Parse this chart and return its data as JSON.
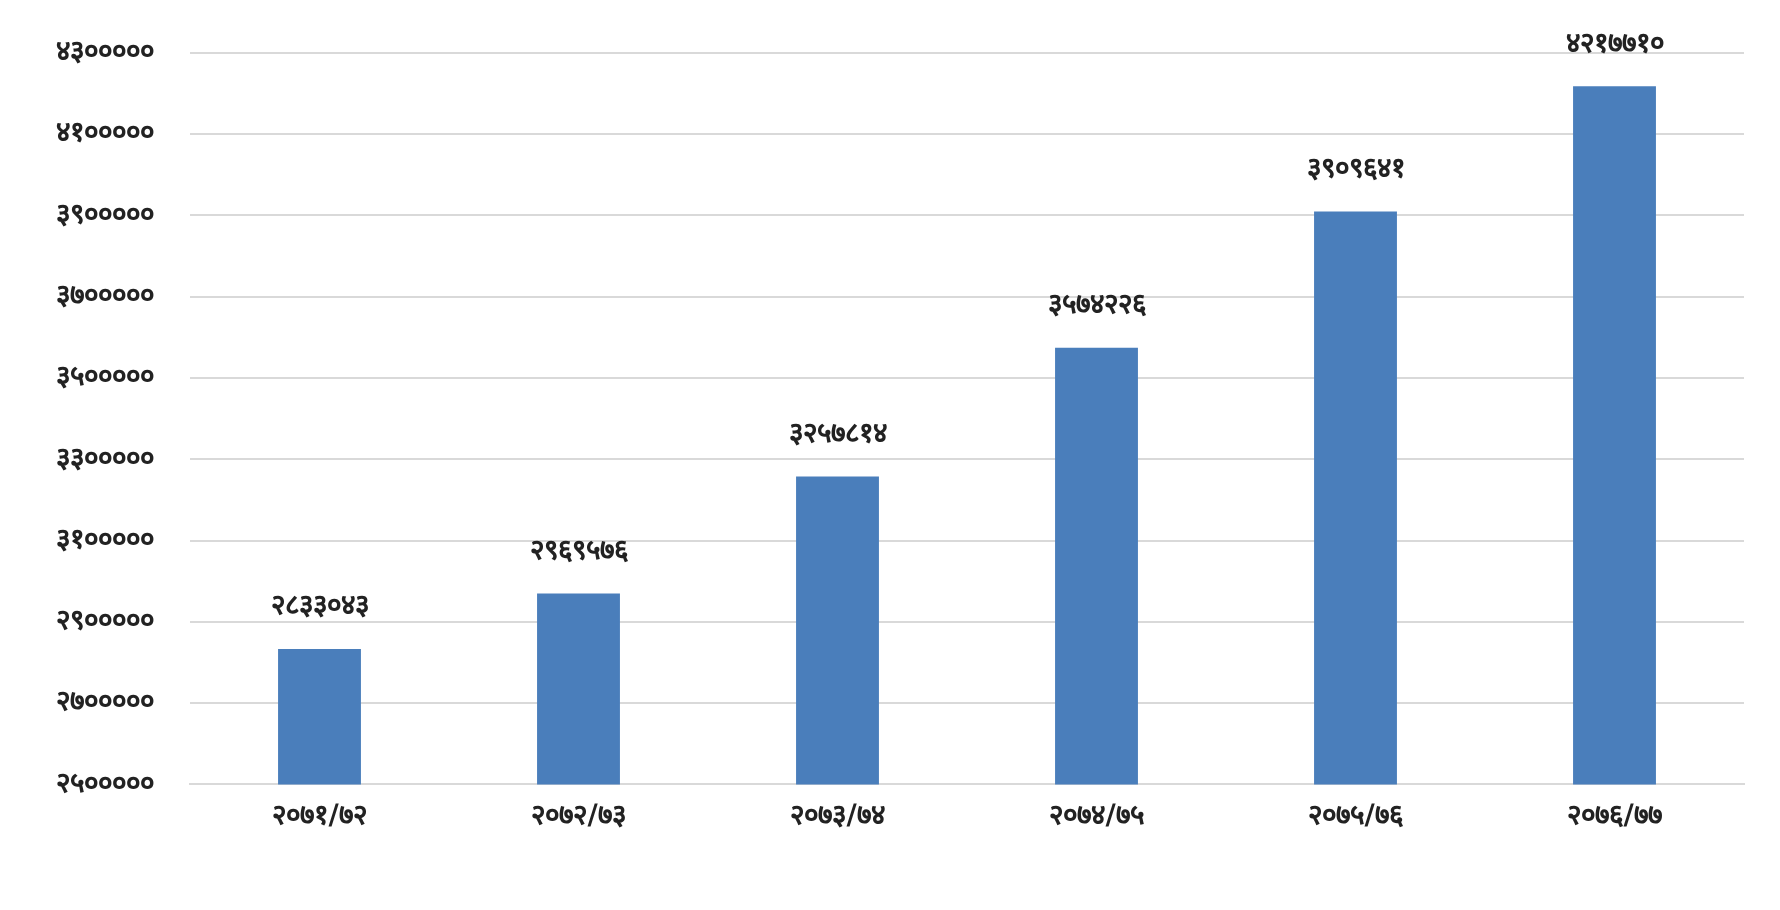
{
  "chart_data": {
    "type": "bar",
    "categories": [
      "२०७१/७२",
      "२०७२/७३",
      "२०७३/७४",
      "२०७४/७५",
      "२०७५/७६",
      "२०७६/७७"
    ],
    "values": [
      2833043,
      2969576,
      3257814,
      3574226,
      3909641,
      4217710
    ],
    "value_labels": [
      "२८३३०४३",
      "२९६९५७६",
      "३२५७८१४",
      "३५७४२२६",
      "३९०९६४१",
      "४२१७७१०"
    ],
    "color": "#4a7ebb",
    "ylim": [
      2500000,
      4300000
    ],
    "yticks": [
      {
        "value": 2500000,
        "label": "२५०००००"
      },
      {
        "value": 2700000,
        "label": "२७०००००"
      },
      {
        "value": 2900000,
        "label": "२९०००००"
      },
      {
        "value": 3100000,
        "label": "३१०००००"
      },
      {
        "value": 3300000,
        "label": "३३०००००"
      },
      {
        "value": 3500000,
        "label": "३५०००००"
      },
      {
        "value": 3700000,
        "label": "३७०००००"
      },
      {
        "value": 3900000,
        "label": "३९०००००"
      },
      {
        "value": 4100000,
        "label": "४१०००००"
      },
      {
        "value": 4300000,
        "label": "४३०००००"
      }
    ],
    "grid": "y",
    "legend": false
  }
}
